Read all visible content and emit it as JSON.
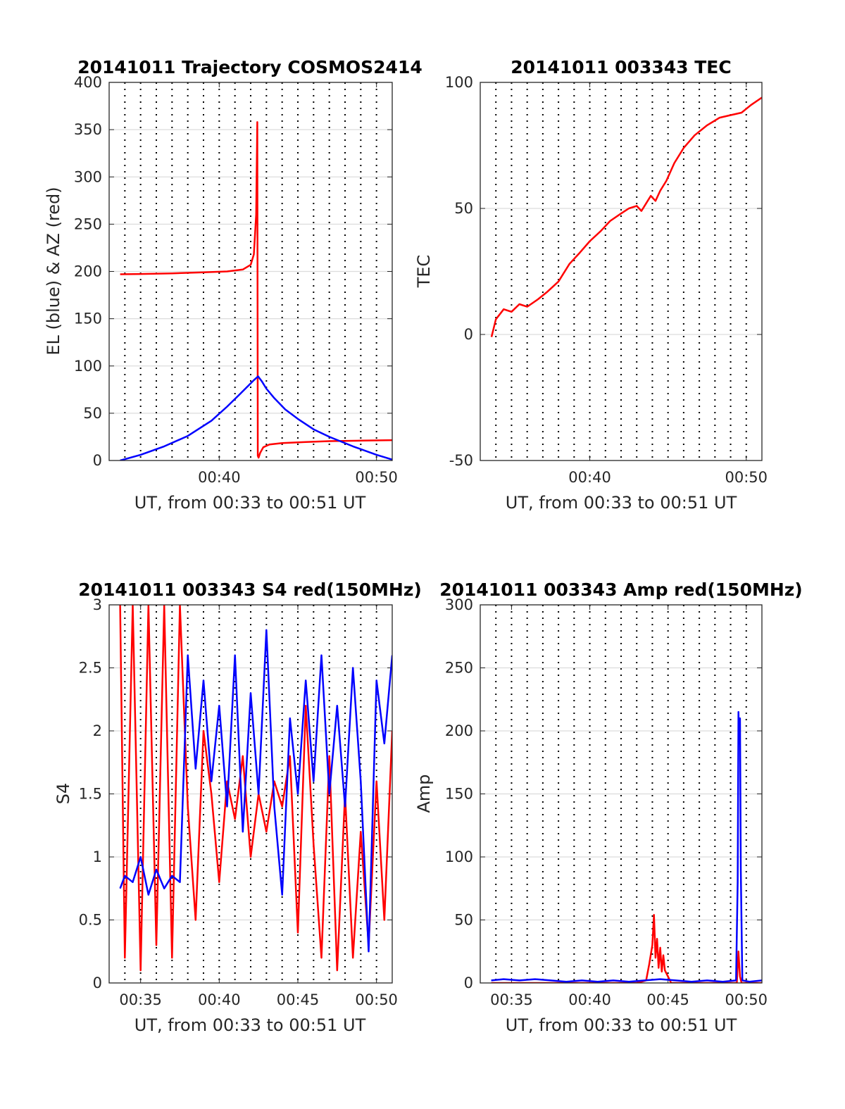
{
  "chart_data": [
    {
      "type": "line",
      "title": "20141011 Trajectory COSMOS2414",
      "xlabel": "UT, from 00:33 to 00:51 UT",
      "ylabel": "EL (blue) & AZ (red)",
      "xlim": [
        "00:33:00",
        "00:51:00"
      ],
      "ylim": [
        0,
        400
      ],
      "yticks": [
        "0",
        "50",
        "100",
        "150",
        "200",
        "250",
        "300",
        "350",
        "400"
      ],
      "xticks": [
        {
          "label": "00:40",
          "t": 40
        },
        {
          "label": "00:50",
          "t": 50
        }
      ],
      "grid": true,
      "series": [
        {
          "color": "#ff0000",
          "t": [
            33.7,
            35,
            37,
            39,
            40.5,
            41.5,
            42.0,
            42.2,
            42.35,
            42.42,
            42.45,
            42.5,
            42.6,
            42.8,
            43.2,
            44,
            45.5,
            47,
            49,
            51
          ],
          "values": [
            197,
            197.3,
            198,
            199,
            200,
            202,
            207,
            218,
            260,
            358,
            5,
            3,
            8,
            14,
            17,
            18.5,
            19.5,
            20.5,
            21,
            21.5
          ]
        },
        {
          "color": "#0000ff",
          "t": [
            33.7,
            35,
            36.5,
            38,
            39.5,
            40.5,
            41.3,
            41.9,
            42.2,
            42.47,
            42.7,
            43,
            43.5,
            44.2,
            45,
            46,
            47,
            48.5,
            50,
            51
          ],
          "values": [
            0,
            6,
            15,
            26,
            42,
            57,
            70,
            80,
            85,
            89,
            84,
            76,
            66,
            54,
            44,
            33,
            25,
            15,
            6,
            1
          ]
        }
      ]
    },
    {
      "type": "line",
      "title": "20141011 003343 TEC",
      "xlabel": "UT, from 00:33 to 00:51 UT",
      "ylabel": "TEC",
      "xlim": [
        "00:33:00",
        "00:51:00"
      ],
      "ylim": [
        -50,
        100
      ],
      "yticks": [
        "-50",
        "0",
        "50",
        "100"
      ],
      "xticks": [
        {
          "label": "00:40",
          "t": 40
        },
        {
          "label": "00:50",
          "t": 50
        }
      ],
      "grid": true,
      "series": [
        {
          "color": "#ff0000",
          "t": [
            33.72,
            34.0,
            34.5,
            35.0,
            35.5,
            36.0,
            36.7,
            37.3,
            38.0,
            38.7,
            39.3,
            40.0,
            40.7,
            41.3,
            42.0,
            42.5,
            43.0,
            43.3,
            43.6,
            43.9,
            44.2,
            44.5,
            44.9,
            45.4,
            46.0,
            46.7,
            47.5,
            48.3,
            49.0,
            49.7,
            50.3,
            51.0
          ],
          "values": [
            -1,
            6,
            10,
            9,
            12,
            11,
            14,
            17,
            21,
            28,
            32,
            37,
            41,
            45,
            48,
            50,
            51,
            49,
            52,
            55,
            53,
            57,
            61,
            68,
            74,
            79,
            83,
            86,
            87,
            88,
            91,
            94
          ]
        }
      ]
    },
    {
      "type": "line",
      "title": "20141011 003343 S4 red(150MHz)",
      "xlabel": "UT, from 00:33 to 00:51 UT",
      "ylabel": "S4",
      "xlim": [
        "00:33:00",
        "00:51:00"
      ],
      "ylim": [
        0,
        3
      ],
      "yticks": [
        "0",
        "0.5",
        "1",
        "1.5",
        "2",
        "2.5",
        "3"
      ],
      "xticks": [
        {
          "label": "00:35",
          "t": 35
        },
        {
          "label": "00:40",
          "t": 40
        },
        {
          "label": "00:45",
          "t": 45
        },
        {
          "label": "00:50",
          "t": 50
        }
      ],
      "grid": true,
      "series": [
        {
          "color": "#ff0000",
          "t": [
            33.7,
            34.0,
            34.5,
            35.0,
            35.5,
            36.0,
            36.5,
            37.0,
            37.5,
            38.0,
            38.5,
            39.0,
            39.5,
            40.0,
            40.5,
            41.0,
            41.5,
            42.0,
            42.5,
            43.0,
            43.5,
            44.0,
            44.5,
            45.0,
            45.5,
            46.0,
            46.5,
            47.0,
            47.5,
            48.0,
            48.5,
            49.0,
            49.5,
            50.0,
            50.5,
            51.0
          ],
          "values": [
            3.0,
            0.2,
            3.0,
            0.1,
            3.0,
            0.3,
            3.0,
            0.2,
            3.0,
            1.4,
            0.5,
            2.0,
            1.5,
            0.8,
            1.6,
            1.3,
            1.8,
            1.0,
            1.5,
            1.2,
            1.6,
            1.4,
            1.8,
            0.4,
            2.2,
            1.1,
            0.2,
            1.8,
            0.1,
            1.5,
            0.2,
            1.2,
            0.3,
            1.6,
            0.5,
            2.0
          ]
        },
        {
          "color": "#0000ff",
          "t": [
            33.7,
            34.0,
            34.5,
            35.0,
            35.5,
            36.0,
            36.5,
            37.0,
            37.5,
            38.0,
            38.5,
            39.0,
            39.5,
            40.0,
            40.5,
            41.0,
            41.5,
            42.0,
            42.5,
            43.0,
            43.5,
            44.0,
            44.5,
            45.0,
            45.5,
            46.0,
            46.5,
            47.0,
            47.5,
            48.0,
            48.5,
            49.0,
            49.5,
            50.0,
            50.5,
            51.0
          ],
          "values": [
            0.75,
            0.85,
            0.8,
            1.0,
            0.7,
            0.9,
            0.75,
            0.85,
            0.8,
            2.6,
            1.7,
            2.4,
            1.6,
            2.2,
            1.4,
            2.6,
            1.2,
            2.3,
            1.5,
            2.8,
            1.4,
            0.7,
            2.1,
            1.5,
            2.4,
            1.6,
            2.6,
            1.5,
            2.2,
            1.4,
            2.5,
            1.6,
            0.25,
            2.4,
            1.9,
            2.6
          ]
        }
      ]
    },
    {
      "type": "line",
      "title": "20141011 003343 Amp red(150MHz)",
      "xlabel": "UT, from 00:33 to 00:51 UT",
      "ylabel": "Amp",
      "xlim": [
        "00:33:00",
        "00:51:00"
      ],
      "ylim": [
        0,
        300
      ],
      "yticks": [
        "0",
        "50",
        "100",
        "150",
        "200",
        "250",
        "300"
      ],
      "xticks": [
        {
          "label": "00:35",
          "t": 35
        },
        {
          "label": "00:40",
          "t": 40
        },
        {
          "label": "00:45",
          "t": 45
        },
        {
          "label": "00:50",
          "t": 50
        }
      ],
      "grid": true,
      "series": [
        {
          "color": "#ff0000",
          "t": [
            33.7,
            35,
            38,
            41,
            43.0,
            43.6,
            43.8,
            44.0,
            44.1,
            44.2,
            44.3,
            44.4,
            44.5,
            44.6,
            44.7,
            44.8,
            45.0,
            45.2,
            46,
            49.4,
            49.5,
            49.6,
            49.7,
            50,
            51
          ],
          "values": [
            0,
            0,
            0,
            0,
            0,
            2,
            15,
            30,
            54,
            20,
            35,
            12,
            28,
            9,
            22,
            10,
            5,
            0,
            0,
            0,
            25,
            5,
            0,
            0,
            0
          ]
        },
        {
          "color": "#0000ff",
          "t": [
            33.7,
            34.5,
            35.5,
            36.5,
            37.5,
            38.5,
            39.5,
            40.5,
            41.5,
            42.5,
            43.5,
            44.5,
            45.5,
            46.5,
            47.5,
            48.5,
            49.35,
            49.45,
            49.5,
            49.55,
            49.6,
            49.65,
            49.75,
            50.2,
            51.0
          ],
          "values": [
            2,
            3,
            2,
            3,
            2,
            1,
            2,
            1,
            2,
            1,
            2,
            3,
            2,
            1,
            2,
            1,
            2,
            80,
            215,
            190,
            210,
            90,
            2,
            1,
            2
          ]
        }
      ]
    }
  ]
}
